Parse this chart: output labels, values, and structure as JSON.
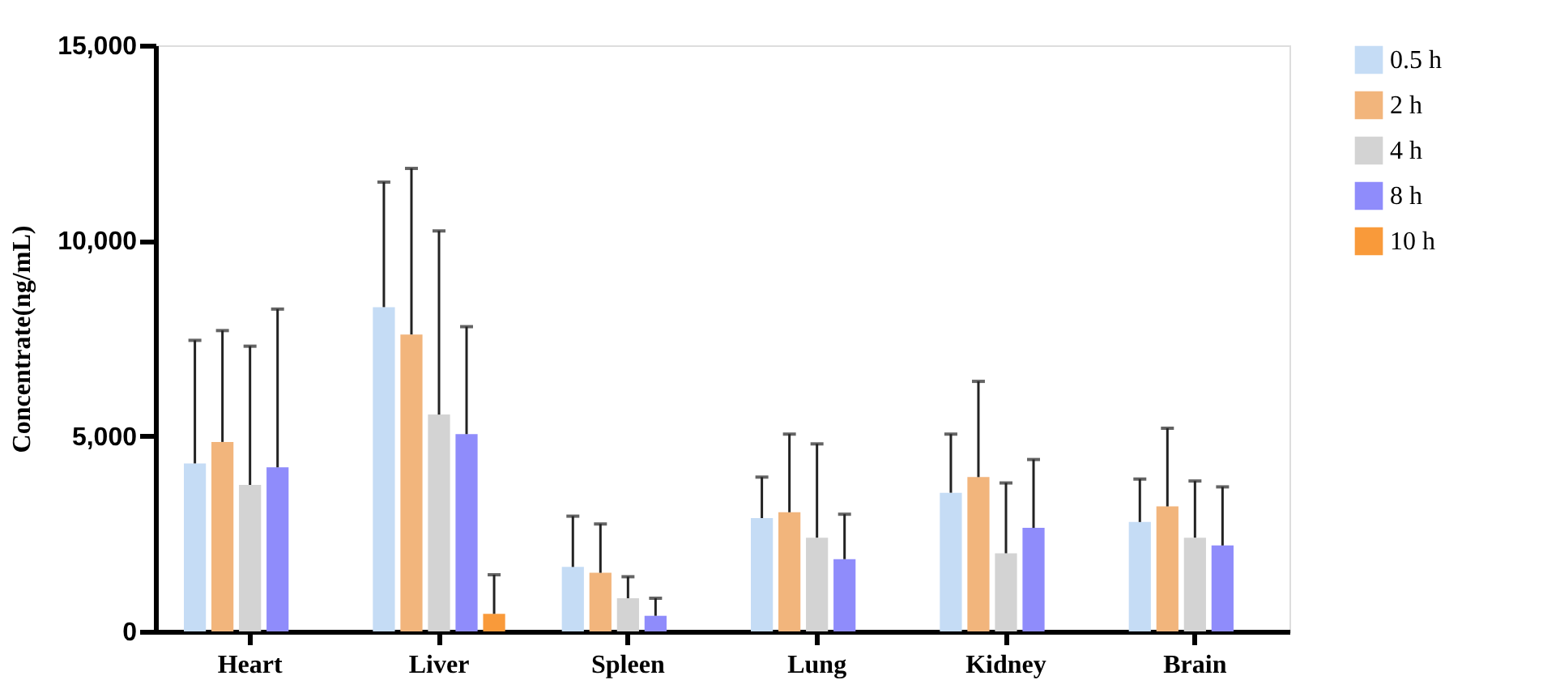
{
  "chart_data": {
    "type": "bar",
    "ylabel": "Concentrate(ng/mL)",
    "categories": [
      "Heart",
      "Liver",
      "Spleen",
      "Lung",
      "Kidney",
      "Brain"
    ],
    "ylim": [
      0,
      15000
    ],
    "yticks": [
      {
        "value": 0,
        "label": "0"
      },
      {
        "value": 5000,
        "label": "5,000"
      },
      {
        "value": 10000,
        "label": "10,000"
      },
      {
        "value": 15000,
        "label": "15,000"
      }
    ],
    "grid": false,
    "legend": "right",
    "series": [
      {
        "name": "0.5 h",
        "color": "#c5dcf5",
        "values": [
          4300,
          8300,
          1650,
          2900,
          3550,
          2800
        ],
        "errors": [
          [
            4300,
            7450
          ],
          [
            8300,
            11500
          ],
          [
            1650,
            2950
          ],
          [
            2900,
            3950
          ],
          [
            3550,
            5050
          ],
          [
            2800,
            3900
          ]
        ]
      },
      {
        "name": "2 h",
        "color": "#f2b57c",
        "values": [
          4850,
          7600,
          1500,
          3050,
          3950,
          3200
        ],
        "errors": [
          [
            4850,
            7700
          ],
          [
            7600,
            11850
          ],
          [
            1500,
            2750
          ],
          [
            3050,
            5050
          ],
          [
            3950,
            6400
          ],
          [
            3200,
            5200
          ]
        ]
      },
      {
        "name": "4 h",
        "color": "#d3d3d3",
        "values": [
          3750,
          5550,
          850,
          2400,
          2000,
          2400
        ],
        "errors": [
          [
            3750,
            7300
          ],
          [
            5550,
            10250
          ],
          [
            850,
            1400
          ],
          [
            2400,
            4800
          ],
          [
            2000,
            3800
          ],
          [
            2400,
            3850
          ]
        ]
      },
      {
        "name": "8 h",
        "color": "#8f8cfb",
        "values": [
          4200,
          5050,
          400,
          1850,
          2650,
          2200
        ],
        "errors": [
          [
            4200,
            8250
          ],
          [
            5050,
            7800
          ],
          [
            400,
            850
          ],
          [
            1850,
            3000
          ],
          [
            2650,
            4400
          ],
          [
            2200,
            3700
          ]
        ]
      },
      {
        "name": "10 h",
        "color": "#f99a3a",
        "values": [
          null,
          450,
          null,
          null,
          null,
          null
        ],
        "errors": [
          null,
          [
            450,
            1450
          ],
          null,
          null,
          null,
          null
        ]
      }
    ]
  }
}
